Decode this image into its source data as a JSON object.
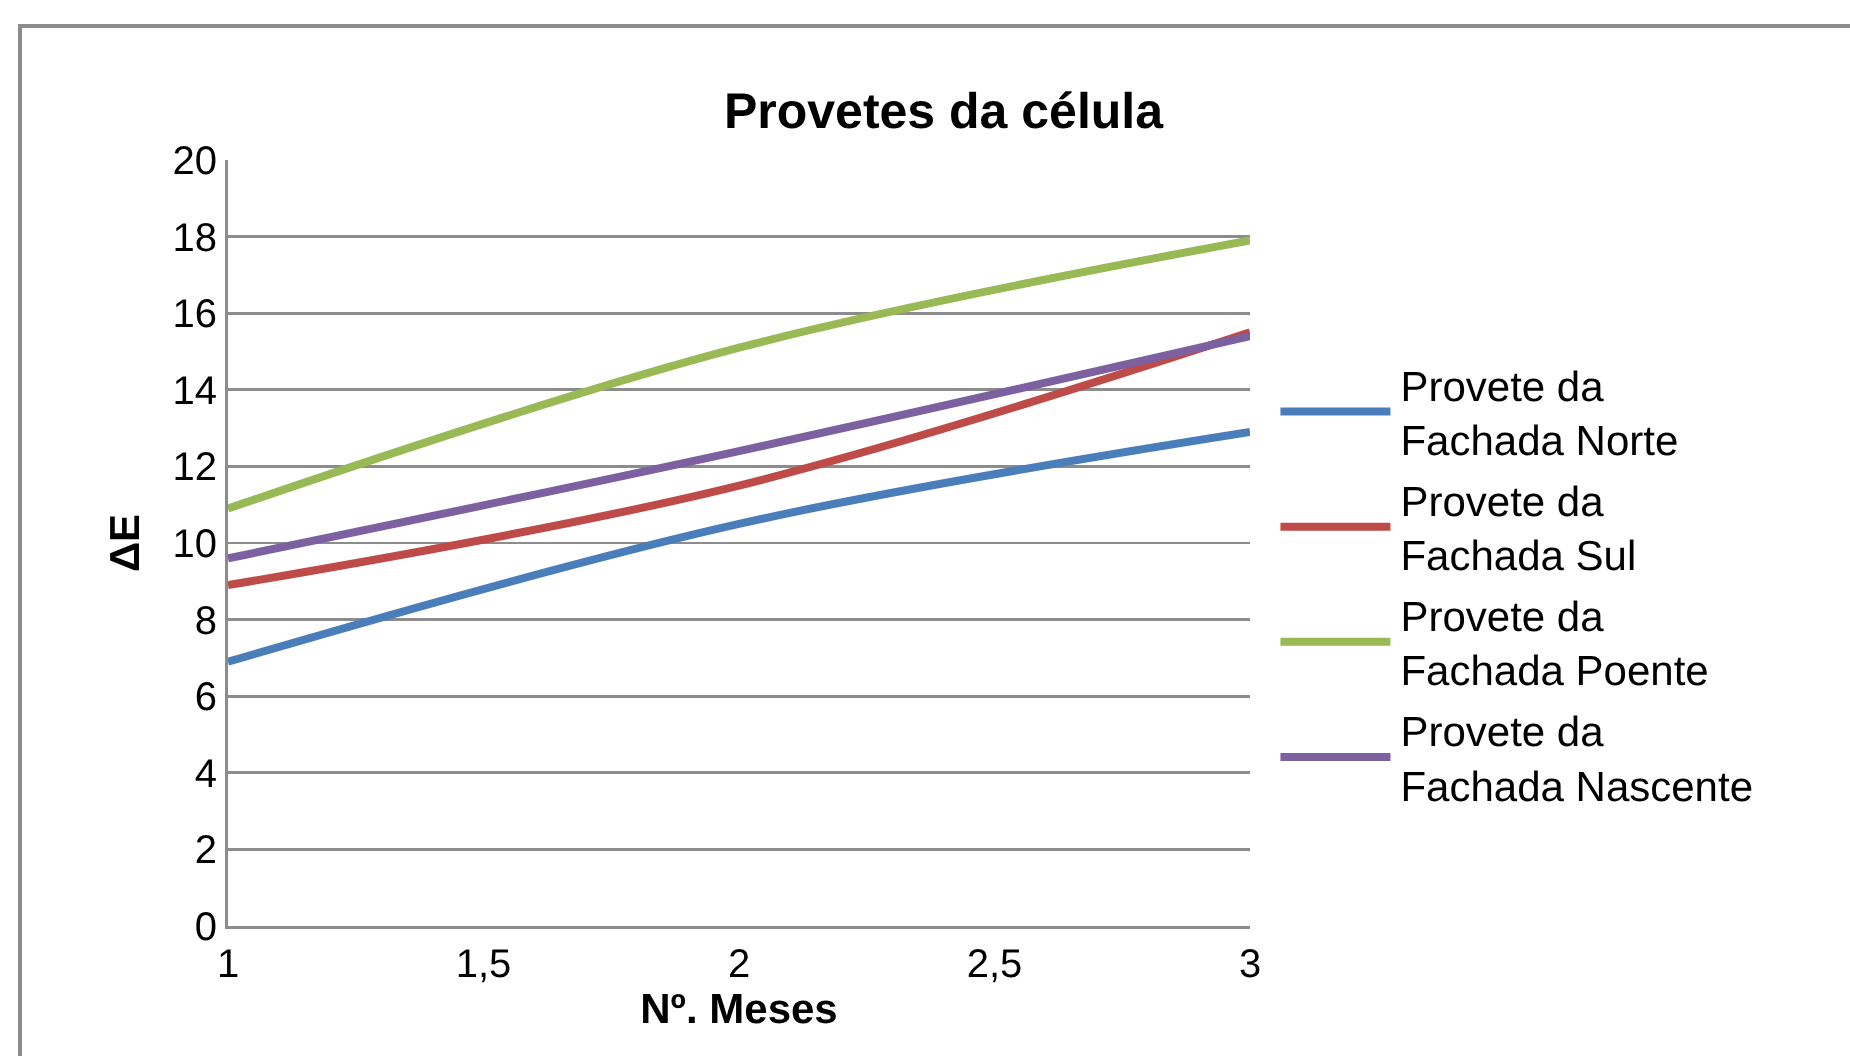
{
  "chart_data": {
    "type": "line",
    "title": "Provetes da célula",
    "xlabel": "Nº. Meses",
    "ylabel": "ΔE",
    "x": [
      1,
      2,
      3
    ],
    "series": [
      {
        "name": "Provete da Fachada Norte",
        "color": "#4a7ebb",
        "values": [
          6.9,
          10.5,
          12.9
        ]
      },
      {
        "name": "Provete da Fachada Sul",
        "color": "#be4b48",
        "values": [
          8.9,
          11.5,
          15.5
        ]
      },
      {
        "name": "Provete da Fachada Poente",
        "color": "#98b954",
        "values": [
          10.9,
          15.1,
          17.9
        ]
      },
      {
        "name": "Provete da Fachada Nascente",
        "color": "#7d60a0",
        "values": [
          9.6,
          12.4,
          15.4
        ]
      }
    ],
    "xlim": [
      1,
      3
    ],
    "xticks": [
      1,
      {
        "value": 1.5,
        "label": "1,5"
      },
      2,
      {
        "value": 2.5,
        "label": "2,5"
      },
      3
    ],
    "ylim": [
      0,
      20
    ],
    "yticks": [
      0,
      2,
      4,
      6,
      8,
      10,
      12,
      14,
      16,
      18,
      20
    ],
    "grid": "y",
    "legend": "right",
    "marker": "none",
    "line_style": "solid"
  }
}
